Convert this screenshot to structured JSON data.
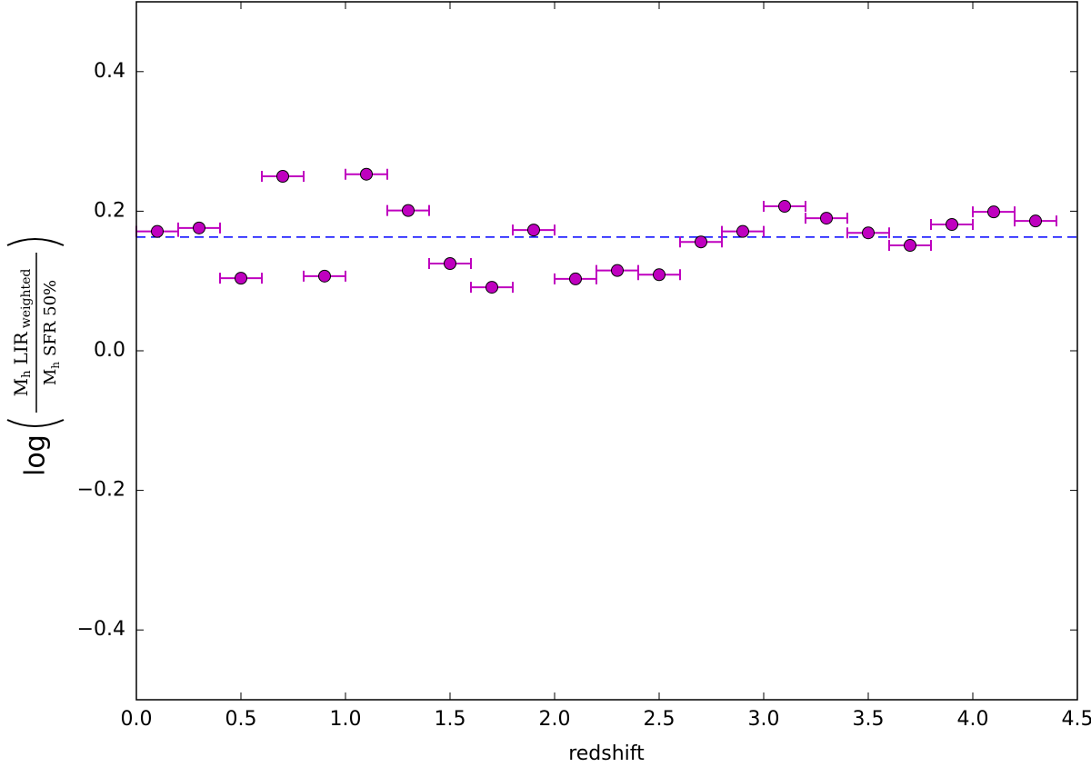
{
  "chart_data": {
    "type": "errorbar",
    "xlabel": "redshift",
    "ylabel": {
      "func": "log",
      "num_main": "M",
      "num_sub": "h",
      "num_text": "LIR",
      "num_text_sub": "weighted",
      "den_main": "M",
      "den_sub": "h",
      "den_text": "SFR 50%"
    },
    "xlim": [
      0,
      4.5
    ],
    "xticks": [
      {
        "value": 0,
        "label": "0.0"
      },
      0.5,
      {
        "value": 1,
        "label": "1.0"
      },
      1.5,
      {
        "value": 2,
        "label": "2.0"
      },
      2.5,
      {
        "value": 3,
        "label": "3.0"
      },
      3.5,
      {
        "value": 4,
        "label": "4.0"
      },
      4.5
    ],
    "ylim": [
      -0.5,
      0.5
    ],
    "yticks": [
      {
        "value": -0.4,
        "label": "−0.4"
      },
      {
        "value": -0.2,
        "label": "−0.2"
      },
      {
        "value": 0,
        "label": "0.0"
      },
      0.2,
      0.4
    ],
    "hline": 0.163,
    "hline_color": "#0000ff",
    "series": [
      {
        "color": "#bf00bf",
        "x": [
          0.1,
          0.3,
          0.5,
          0.7,
          0.9,
          1.1,
          1.3,
          1.5,
          1.7,
          1.9,
          2.1,
          2.3,
          2.5,
          2.7,
          2.9,
          3.1,
          3.3,
          3.5,
          3.7,
          3.9,
          4.1,
          4.3
        ],
        "values": [
          0.171,
          0.176,
          0.104,
          0.25,
          0.107,
          0.253,
          0.201,
          0.125,
          0.091,
          0.173,
          0.103,
          0.115,
          0.109,
          0.156,
          0.171,
          0.207,
          0.19,
          0.169,
          0.151,
          0.181,
          0.199,
          0.186
        ],
        "xerr": [
          0.1,
          0.1,
          0.1,
          0.1,
          0.1,
          0.1,
          0.1,
          0.1,
          0.1,
          0.1,
          0.1,
          0.1,
          0.1,
          0.1,
          0.1,
          0.1,
          0.1,
          0.1,
          0.1,
          0.1,
          0.1,
          0.1
        ]
      }
    ]
  }
}
